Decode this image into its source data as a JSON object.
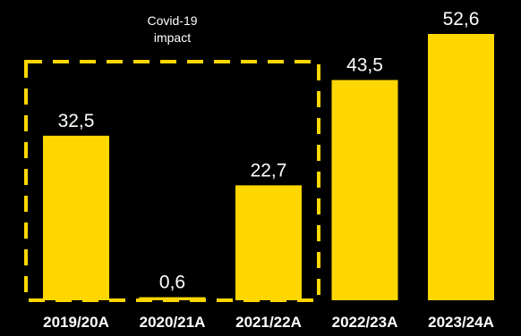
{
  "chart_data": {
    "type": "bar",
    "categories": [
      "2019/20A",
      "2020/21A",
      "2021/22A",
      "2022/23A",
      "2023/24A"
    ],
    "values": [
      32.5,
      0.6,
      22.7,
      43.5,
      52.6
    ],
    "value_labels": [
      "32,5",
      "0,6",
      "22,7",
      "43,5",
      "52,6"
    ],
    "ylim": [
      0,
      52.6
    ],
    "grid": false,
    "bar_color": "#FFD700",
    "annotation": {
      "line1": "Covid-19",
      "line2": "impact",
      "covers": [
        "2019/20A",
        "2020/21A",
        "2021/22A"
      ],
      "style": "dashed-box",
      "color": "#FFD700"
    }
  }
}
